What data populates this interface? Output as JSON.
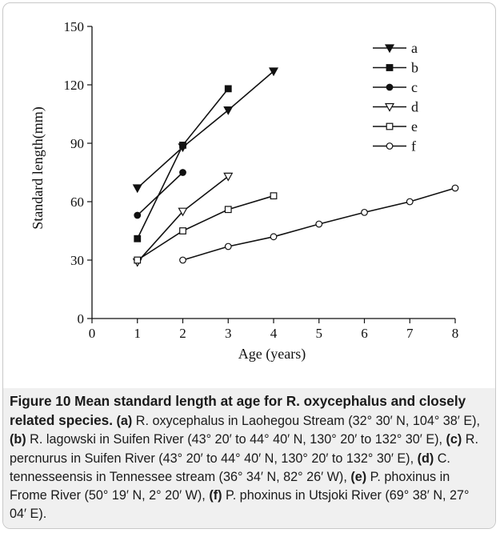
{
  "chart_data": {
    "type": "line",
    "xlabel": "Age (years)",
    "ylabel": "Standard length(mm)",
    "xlim": [
      0,
      8
    ],
    "ylim": [
      0,
      150
    ],
    "xticks": [
      "0",
      "1",
      "2",
      "3",
      "4",
      "5",
      "6",
      "7",
      "8"
    ],
    "yticks": [
      "0",
      "30",
      "60",
      "90",
      "120",
      "150"
    ],
    "grid": false,
    "legend_position": "top-right",
    "series": [
      {
        "name": "a",
        "marker": "triangle-down-filled",
        "x": [
          1,
          2,
          3,
          4
        ],
        "y": [
          67,
          88,
          107,
          127
        ]
      },
      {
        "name": "b",
        "marker": "square-filled",
        "x": [
          1,
          2,
          3
        ],
        "y": [
          41,
          89,
          118
        ]
      },
      {
        "name": "c",
        "marker": "circle-filled",
        "x": [
          1,
          2
        ],
        "y": [
          53,
          75
        ]
      },
      {
        "name": "d",
        "marker": "triangle-down-open",
        "x": [
          1,
          2,
          3
        ],
        "y": [
          29,
          55,
          73
        ]
      },
      {
        "name": "e",
        "marker": "square-open",
        "x": [
          1,
          2,
          3,
          4
        ],
        "y": [
          30,
          45,
          56,
          63
        ]
      },
      {
        "name": "f",
        "marker": "circle-open",
        "x": [
          2,
          3,
          4,
          5,
          6,
          7,
          8
        ],
        "y": [
          30,
          37,
          42,
          48.5,
          54.5,
          60,
          67
        ]
      }
    ]
  },
  "caption": {
    "title": "Figure 10 Mean standard length at age for R. oxycephalus and closely related species.",
    "parts": [
      {
        "label": "(a)",
        "text": " R. oxycephalus in Laohegou Stream (32° 30′ N, 104° 38′ E), "
      },
      {
        "label": "(b)",
        "text": " R. lagowski in Suifen River (43° 20′ to 44° 40′ N, 130° 20′ to 132° 30′ E), "
      },
      {
        "label": "(c)",
        "text": " R. percnurus in Suifen River (43° 20′ to 44° 40′ N, 130° 20′ to 132° 30′ E), "
      },
      {
        "label": "(d)",
        "text": " C. tennesseensis in Tennessee stream (36° 34′ N, 82° 26′ W), "
      },
      {
        "label": "(e)",
        "text": " P. phoxinus in Frome River (50° 19′ N, 2° 20′ W), "
      },
      {
        "label": "(f)",
        "text": " P. phoxinus in Utsjoki River (69° 38′ N, 27° 04′ E)."
      }
    ]
  }
}
